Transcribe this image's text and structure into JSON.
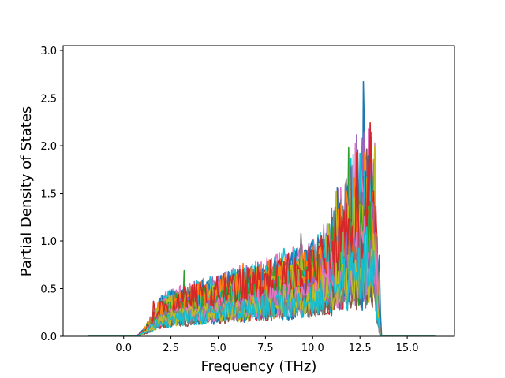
{
  "chart_data": {
    "type": "line",
    "title": "",
    "xlabel": "Frequency (THz)",
    "ylabel": "Partial Density of States",
    "xlim": [
      -3.2,
      17.5
    ],
    "ylim": [
      0.0,
      3.05
    ],
    "xticks": [
      0.0,
      2.5,
      5.0,
      7.5,
      10.0,
      12.5,
      15.0
    ],
    "xtick_labels": [
      "0.0",
      "2.5",
      "5.0",
      "7.5",
      "10.0",
      "12.5",
      "15.0"
    ],
    "yticks": [
      0.0,
      0.5,
      1.0,
      1.5,
      2.0,
      2.5,
      3.0
    ],
    "ytick_labels": [
      "0.0",
      "0.5",
      "1.0",
      "1.5",
      "2.0",
      "2.5",
      "3.0"
    ],
    "grid": false,
    "legend": "none",
    "domain_x": [
      -1.9,
      16.5
    ],
    "nonzero_range": [
      0.5,
      13.6
    ],
    "series_count": 40,
    "color_cycle": [
      "#1f77b4",
      "#ff7f0e",
      "#2ca02c",
      "#d62728",
      "#9467bd",
      "#8c564b",
      "#e377c2",
      "#7f7f7f",
      "#bcbd22",
      "#17becf"
    ],
    "peaks": [
      {
        "x": 12.7,
        "y": 2.9
      },
      {
        "x": 12.95,
        "y": 2.27
      },
      {
        "x": 11.9,
        "y": 1.98
      },
      {
        "x": 13.0,
        "y": 1.72
      },
      {
        "x": 13.2,
        "y": 1.55
      },
      {
        "x": 12.3,
        "y": 1.45
      },
      {
        "x": 11.2,
        "y": 1.2
      },
      {
        "x": 9.4,
        "y": 1.17
      },
      {
        "x": 11.5,
        "y": 1.02
      },
      {
        "x": 8.5,
        "y": 1.0
      },
      {
        "x": 13.5,
        "y": 0.92
      },
      {
        "x": 6.3,
        "y": 0.83
      },
      {
        "x": 3.2,
        "y": 0.69
      },
      {
        "x": 1.6,
        "y": 0.4
      }
    ]
  }
}
